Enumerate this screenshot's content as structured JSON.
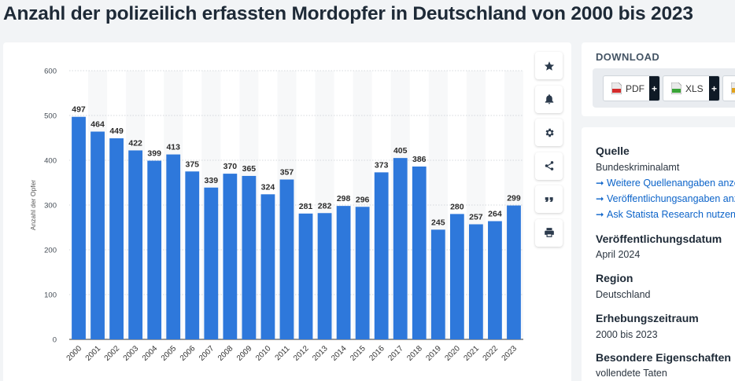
{
  "page_title": "Anzahl der polizeilich erfassten Mordopfer in Deutschland von 2000 bis 2023",
  "chart_data": {
    "type": "bar",
    "categories": [
      "2000",
      "2001",
      "2002",
      "2003",
      "2004",
      "2005",
      "2006",
      "2007",
      "2008",
      "2009",
      "2010",
      "2011",
      "2012",
      "2013",
      "2014",
      "2015",
      "2016",
      "2017",
      "2018",
      "2019",
      "2020",
      "2021",
      "2022",
      "2023"
    ],
    "values": [
      497,
      464,
      449,
      422,
      399,
      413,
      375,
      339,
      370,
      365,
      324,
      357,
      281,
      282,
      298,
      296,
      373,
      405,
      386,
      245,
      280,
      257,
      264,
      299
    ],
    "xlabel": "",
    "ylabel": "Anzahl der Opfer",
    "ylim": [
      0,
      600
    ],
    "yticks": [
      0,
      100,
      200,
      300,
      400,
      500,
      600
    ],
    "grid": true,
    "bar_color": "#2e78db"
  },
  "tools": [
    {
      "name": "favorite-button",
      "icon": "star-icon"
    },
    {
      "name": "notification-button",
      "icon": "bell-icon"
    },
    {
      "name": "settings-button",
      "icon": "gear-icon"
    },
    {
      "name": "share-button",
      "icon": "share-icon"
    },
    {
      "name": "cite-button",
      "icon": "quote-icon"
    },
    {
      "name": "print-button",
      "icon": "printer-icon"
    }
  ],
  "download": {
    "title": "DOWNLOAD",
    "pdf_label": "PDF",
    "xls_label": "XLS",
    "plus": "+"
  },
  "info": {
    "source_heading": "Quelle",
    "source_value": "Bundeskriminalamt",
    "link1": "Weitere Quellenangaben anzeigen",
    "link2": "Veröffentlichungsangaben anzeigen",
    "link3": "Ask Statista Research nutzen",
    "pubdate_heading": "Veröffentlichungsdatum",
    "pubdate_value": "April 2024",
    "region_heading": "Region",
    "region_value": "Deutschland",
    "period_heading": "Erhebungszeitraum",
    "period_value": "2000 bis 2023",
    "props_heading": "Besondere Eigenschaften",
    "props_value": "vollendete Taten"
  }
}
